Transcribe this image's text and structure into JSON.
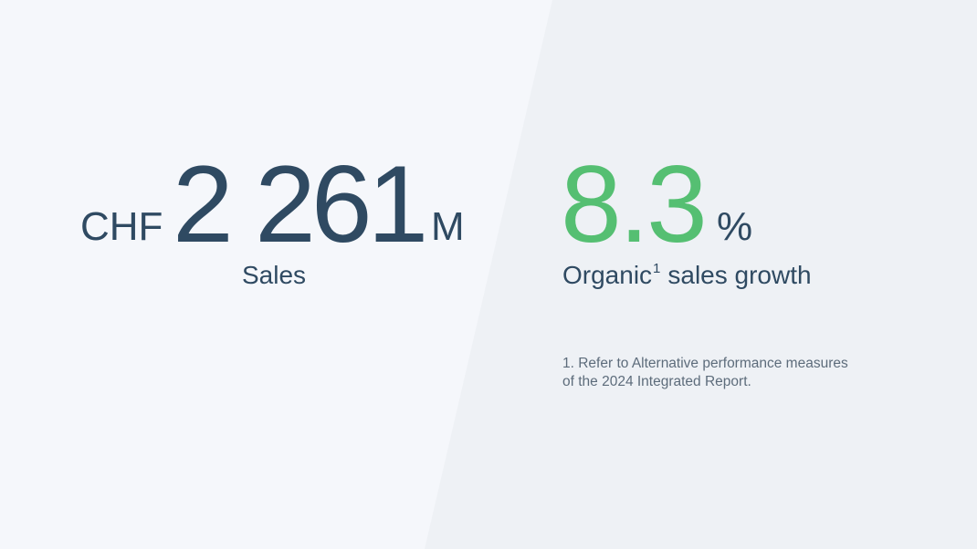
{
  "kpis": [
    {
      "prefix": "CHF",
      "value": "2 261",
      "suffix": "M",
      "label": "Sales"
    },
    {
      "value": "8.3",
      "suffix": "%",
      "label": "Organic",
      "footnote_ref": "1",
      "label_rest": "sales growth"
    }
  ],
  "footnote": {
    "lines": [
      "1. Refer to Alternative performance measures",
      "of the 2024 Integrated Report."
    ]
  }
}
